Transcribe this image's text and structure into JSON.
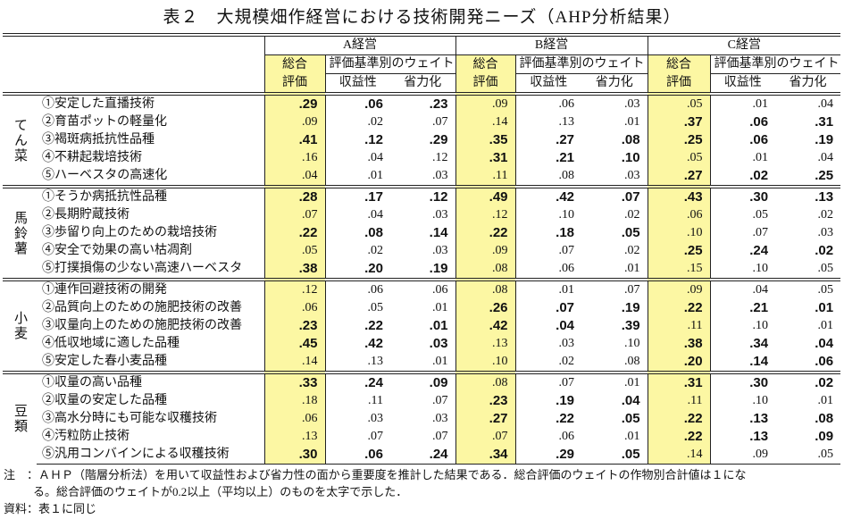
{
  "title": "表２　大規模畑作経営における技術開発ニーズ（AHP分析結果）",
  "header": {
    "farms": [
      "A経営",
      "B経営",
      "C経営"
    ],
    "total_label_1": "総合",
    "total_label_2": "評価",
    "weights_label": "評価基準別のウェイト",
    "profit_label": "収益性",
    "labor_label": "省力化"
  },
  "groups": [
    {
      "crop": "てん菜",
      "rows": [
        {
          "item": "①安定した直播技術",
          "values": [
            ".29",
            ".06",
            ".23",
            ".09",
            ".06",
            ".03",
            ".05",
            ".01",
            ".04"
          ]
        },
        {
          "item": "②育苗ポットの軽量化",
          "values": [
            ".09",
            ".02",
            ".07",
            ".14",
            ".13",
            ".01",
            ".37",
            ".06",
            ".31"
          ]
        },
        {
          "item": "③褐斑病抵抗性品種",
          "values": [
            ".41",
            ".12",
            ".29",
            ".35",
            ".27",
            ".08",
            ".25",
            ".06",
            ".19"
          ]
        },
        {
          "item": "④不耕起栽培技術",
          "values": [
            ".16",
            ".04",
            ".12",
            ".31",
            ".21",
            ".10",
            ".05",
            ".01",
            ".04"
          ]
        },
        {
          "item": "⑤ハーベスタの高速化",
          "values": [
            ".04",
            ".01",
            ".03",
            ".11",
            ".08",
            ".03",
            ".27",
            ".02",
            ".25"
          ]
        }
      ]
    },
    {
      "crop": "馬鈴薯",
      "rows": [
        {
          "item": "①そうか病抵抗性品種",
          "values": [
            ".28",
            ".17",
            ".12",
            ".49",
            ".42",
            ".07",
            ".43",
            ".30",
            ".13"
          ]
        },
        {
          "item": "②長期貯蔵技術",
          "values": [
            ".07",
            ".04",
            ".03",
            ".12",
            ".10",
            ".02",
            ".06",
            ".05",
            ".02"
          ]
        },
        {
          "item": "③歩留り向上のための栽培技術",
          "values": [
            ".22",
            ".08",
            ".14",
            ".22",
            ".18",
            ".05",
            ".10",
            ".07",
            ".03"
          ]
        },
        {
          "item": "④安全で効果の高い枯凋剤",
          "values": [
            ".05",
            ".02",
            ".03",
            ".09",
            ".07",
            ".02",
            ".25",
            ".24",
            ".02"
          ]
        },
        {
          "item": "⑤打撲損傷の少ない高速ハーベスタ",
          "values": [
            ".38",
            ".20",
            ".19",
            ".08",
            ".06",
            ".01",
            ".15",
            ".10",
            ".05"
          ]
        }
      ]
    },
    {
      "crop": "小麦",
      "rows": [
        {
          "item": "①連作回避技術の開発",
          "values": [
            ".12",
            ".06",
            ".06",
            ".08",
            ".01",
            ".07",
            ".09",
            ".04",
            ".05"
          ]
        },
        {
          "item": "②品質向上のための施肥技術の改善",
          "values": [
            ".06",
            ".05",
            ".01",
            ".26",
            ".07",
            ".19",
            ".22",
            ".21",
            ".01"
          ]
        },
        {
          "item": "③収量向上のための施肥技術の改善",
          "values": [
            ".23",
            ".22",
            ".01",
            ".42",
            ".04",
            ".39",
            ".11",
            ".10",
            ".01"
          ]
        },
        {
          "item": "④低収地域に適した品種",
          "values": [
            ".45",
            ".42",
            ".03",
            ".13",
            ".03",
            ".10",
            ".38",
            ".34",
            ".04"
          ]
        },
        {
          "item": "⑤安定した春小麦品種",
          "values": [
            ".14",
            ".13",
            ".01",
            ".10",
            ".02",
            ".08",
            ".20",
            ".14",
            ".06"
          ]
        }
      ]
    },
    {
      "crop": "豆類",
      "rows": [
        {
          "item": "①収量の高い品種",
          "values": [
            ".33",
            ".24",
            ".09",
            ".08",
            ".07",
            ".01",
            ".31",
            ".30",
            ".02"
          ]
        },
        {
          "item": "②収量の安定した品種",
          "values": [
            ".18",
            ".11",
            ".07",
            ".23",
            ".19",
            ".04",
            ".11",
            ".10",
            ".01"
          ]
        },
        {
          "item": "③高水分時にも可能な収穫技術",
          "values": [
            ".06",
            ".03",
            ".03",
            ".27",
            ".22",
            ".05",
            ".22",
            ".13",
            ".08"
          ]
        },
        {
          "item": "④汚粒防止技術",
          "values": [
            ".13",
            ".07",
            ".07",
            ".07",
            ".06",
            ".01",
            ".22",
            ".13",
            ".09"
          ]
        },
        {
          "item": "⑤汎用コンバインによる収穫技術",
          "values": [
            ".30",
            ".06",
            ".24",
            ".34",
            ".29",
            ".05",
            ".14",
            ".09",
            ".05"
          ]
        }
      ]
    }
  ],
  "notes": {
    "note_line1": "注　：ＡＨＰ（階層分析法）を用いて収益性および省力性の面から重要度を推計した結果である．総合評価のウェイトの作物別合計値は１にな",
    "note_line2": "る。総合評価のウェイトが0.2以上（平均以上）のものを太字で示した．",
    "source": "資料：表１に同じ"
  },
  "colors": {
    "highlight": "#fcf7a3"
  }
}
